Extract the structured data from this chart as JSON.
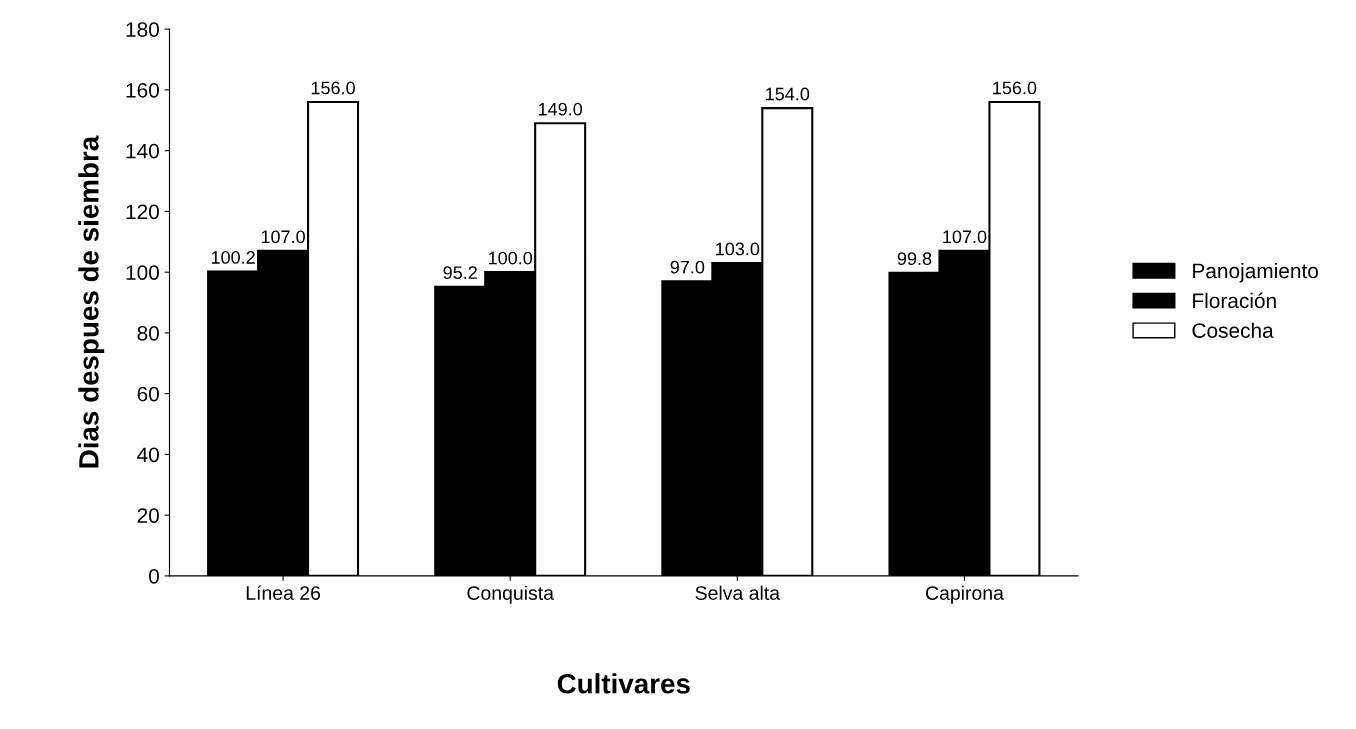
{
  "chart_data": {
    "type": "bar",
    "xlabel": "Cultivares",
    "ylabel": "Dias despues de siembra",
    "categories": [
      "Línea 26",
      "Conquista",
      "Selva alta",
      "Capirona"
    ],
    "series": [
      {
        "name": "Panojamiento",
        "color": "#000000",
        "values": [
          100.2,
          95.2,
          97.0,
          99.8
        ],
        "value_labels": [
          "100.2",
          "95.2",
          "97.0",
          "99.8"
        ]
      },
      {
        "name": "Floración",
        "color": "#000000",
        "values": [
          107.0,
          100.0,
          103.0,
          107.0
        ],
        "value_labels": [
          "107.0",
          "100.0",
          "103.0",
          "107.0"
        ]
      },
      {
        "name": "Cosecha",
        "color": "#ffffff",
        "values": [
          156.0,
          149.0,
          154.0,
          156.0
        ],
        "value_labels": [
          "156.0",
          "149.0",
          "154.0",
          "156.0"
        ]
      }
    ],
    "ylim": [
      0,
      180
    ],
    "yticks": [
      0,
      20,
      40,
      60,
      80,
      100,
      120,
      140,
      160,
      180
    ],
    "grid": false,
    "legend": "right"
  }
}
